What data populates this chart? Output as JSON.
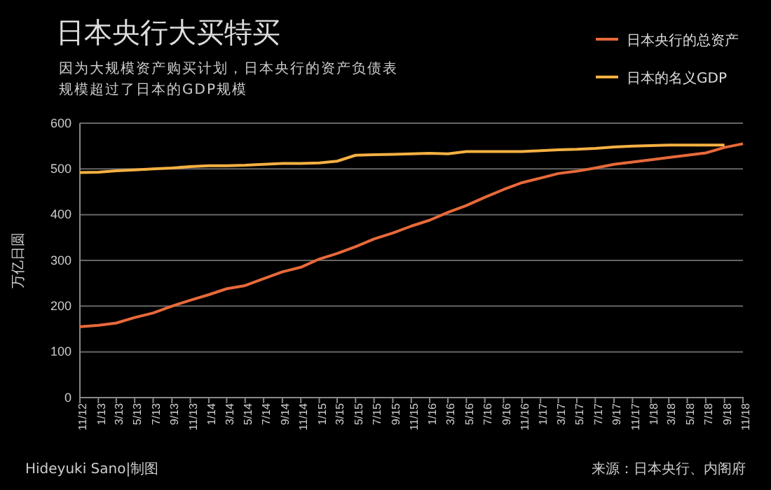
{
  "chart_data": {
    "type": "line",
    "title": "日本央行大买特买",
    "subtitle": "因为大规模资产购买计划，日本央行的资产负债表规模超过了日本的GDP规模",
    "ylabel": "万亿日圆",
    "x": [
      "2012-11",
      "2013-01",
      "2013-03",
      "2013-05",
      "2013-07",
      "2013-09",
      "2013-11",
      "2014-01",
      "2014-03",
      "2014-05",
      "2014-07",
      "2014-09",
      "2014-11",
      "2015-01",
      "2015-03",
      "2015-05",
      "2015-07",
      "2015-09",
      "2015-11",
      "2016-01",
      "2016-03",
      "2016-05",
      "2016-07",
      "2016-09",
      "2016-11",
      "2017-01",
      "2017-03",
      "2017-05",
      "2017-07",
      "2017-09",
      "2017-11",
      "2018-01",
      "2018-03",
      "2018-05",
      "2018-07",
      "2018-09",
      "2018-11"
    ],
    "series": [
      {
        "name": "日本央行的总资产",
        "color": "#e8693a",
        "values": [
          155,
          158,
          163,
          175,
          185,
          200,
          213,
          225,
          238,
          245,
          260,
          275,
          285,
          303,
          315,
          330,
          347,
          360,
          375,
          388,
          405,
          420,
          438,
          455,
          470,
          480,
          490,
          495,
          502,
          510,
          515,
          520,
          525,
          530,
          535,
          547,
          555
        ]
      },
      {
        "name": "日本的名义GDP",
        "color": "#f6b142",
        "values": [
          492,
          493,
          496,
          498,
          500,
          502,
          505,
          507,
          507,
          508,
          510,
          512,
          512,
          513,
          517,
          530,
          531,
          532,
          533,
          534,
          533,
          538,
          538,
          538,
          538,
          540,
          542,
          543,
          545,
          548,
          550,
          551,
          552,
          552,
          552,
          552,
          null
        ]
      }
    ],
    "xlim": [
      "2012-11",
      "2018-11"
    ],
    "xticks": [
      {
        "value": "2012-11",
        "label": "11/12"
      },
      {
        "value": "2013-01",
        "label": "1/13"
      },
      {
        "value": "2013-03",
        "label": "3/13"
      },
      {
        "value": "2013-05",
        "label": "5/13"
      },
      {
        "value": "2013-07",
        "label": "7/13"
      },
      {
        "value": "2013-09",
        "label": "9/13"
      },
      {
        "value": "2013-11",
        "label": "11/13"
      },
      {
        "value": "2014-01",
        "label": "1/14"
      },
      {
        "value": "2014-03",
        "label": "3/14"
      },
      {
        "value": "2014-05",
        "label": "5/14"
      },
      {
        "value": "2014-07",
        "label": "7/14"
      },
      {
        "value": "2014-09",
        "label": "9/14"
      },
      {
        "value": "2014-11",
        "label": "11/14"
      },
      {
        "value": "2015-01",
        "label": "1/15"
      },
      {
        "value": "2015-03",
        "label": "3/15"
      },
      {
        "value": "2015-05",
        "label": "5/15"
      },
      {
        "value": "2015-07",
        "label": "7/15"
      },
      {
        "value": "2015-09",
        "label": "9/15"
      },
      {
        "value": "2015-11",
        "label": "11/15"
      },
      {
        "value": "2016-01",
        "label": "1/16"
      },
      {
        "value": "2016-03",
        "label": "3/16"
      },
      {
        "value": "2016-05",
        "label": "5/16"
      },
      {
        "value": "2016-07",
        "label": "7/16"
      },
      {
        "value": "2016-09",
        "label": "9/16"
      },
      {
        "value": "2016-11",
        "label": "11/16"
      },
      {
        "value": "2017-01",
        "label": "1/17"
      },
      {
        "value": "2017-03",
        "label": "3/17"
      },
      {
        "value": "2017-05",
        "label": "5/17"
      },
      {
        "value": "2017-07",
        "label": "7/17"
      },
      {
        "value": "2017-09",
        "label": "9/17"
      },
      {
        "value": "2017-11",
        "label": "11/17"
      },
      {
        "value": "2018-01",
        "label": "1/18"
      },
      {
        "value": "2018-03",
        "label": "3/18"
      },
      {
        "value": "2018-05",
        "label": "5/18"
      },
      {
        "value": "2018-07",
        "label": "7/18"
      },
      {
        "value": "2018-09",
        "label": "9/18"
      },
      {
        "value": "2018-11",
        "label": "11/18"
      }
    ],
    "ylim": [
      0,
      600
    ],
    "yticks": [
      0,
      100,
      200,
      300,
      400,
      500,
      600
    ],
    "grid": "y",
    "legend": "top right",
    "marker": "none",
    "line_style": "solid",
    "annotations": [
      "Hideyuki Sano|制图",
      "来源：日本央行、内阁府"
    ]
  }
}
